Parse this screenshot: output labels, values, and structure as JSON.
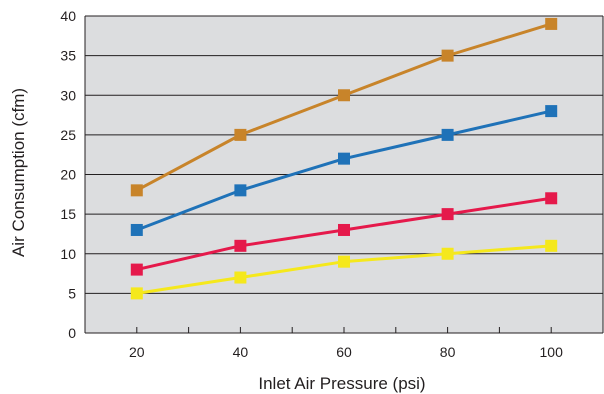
{
  "chart_data": {
    "type": "line",
    "title": "",
    "xlabel": "Inlet Air Pressure (psi)",
    "ylabel": "Air Consumption (cfm)",
    "x": [
      20,
      40,
      60,
      80,
      100
    ],
    "x_tick_labels": [
      "20",
      "40",
      "60",
      "80",
      "100"
    ],
    "xlim": [
      10,
      110
    ],
    "ylim": [
      0,
      40
    ],
    "y_tick_labels": [
      "0",
      "5",
      "10",
      "15",
      "20",
      "25",
      "30",
      "35",
      "40"
    ],
    "grid": "horizontal",
    "background_color": "#dcdddf",
    "series": [
      {
        "color": "#c8842a",
        "values": [
          18,
          25,
          30,
          35,
          39
        ]
      },
      {
        "color": "#1f72b8",
        "values": [
          13,
          18,
          22,
          25,
          28
        ]
      },
      {
        "color": "#e5194b",
        "values": [
          8,
          11,
          13,
          15,
          17
        ]
      },
      {
        "color": "#f5e81c",
        "values": [
          5,
          7,
          9,
          10,
          11
        ]
      }
    ]
  }
}
